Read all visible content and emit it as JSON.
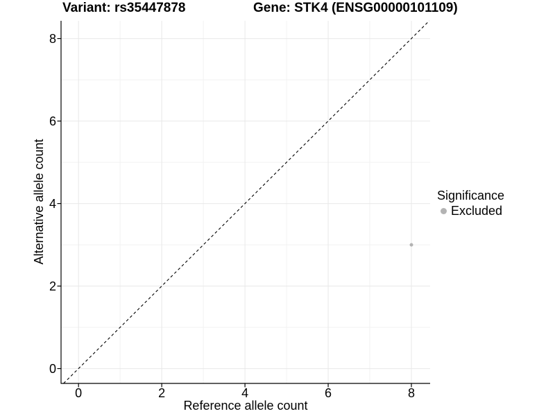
{
  "titles": {
    "left": "Variant: rs35447878",
    "right": "Gene: STK4 (ENSG00000101109)"
  },
  "chart_data": {
    "type": "scatter",
    "xlabel": "Reference allele count",
    "ylabel": "Alternative allele count",
    "xlim": [
      -0.42,
      8.45
    ],
    "ylim": [
      -0.36,
      8.43
    ],
    "xticks": [
      0,
      2,
      4,
      6,
      8
    ],
    "yticks": [
      0,
      2,
      4,
      6,
      8
    ],
    "minor_xticks": [
      1,
      3,
      5,
      7
    ],
    "minor_yticks": [
      1,
      3,
      5,
      7
    ],
    "grid": "major+minor",
    "reference_line": {
      "kind": "identity y=x",
      "style": "dashed",
      "color": "#000000"
    },
    "series": [
      {
        "name": "Excluded",
        "color": "#b3b3b3",
        "point_radius": 2.5,
        "points": [
          {
            "x": 8,
            "y": 3
          }
        ]
      }
    ],
    "legend": {
      "title": "Significance",
      "position": "right",
      "items": [
        {
          "label": "Excluded",
          "color": "#b3b3b3"
        }
      ]
    }
  },
  "colors": {
    "background": "#ffffff",
    "axis_line": "#000000",
    "grid_major": "#e8e8e8",
    "grid_minor": "#f2f2f2",
    "text": "#000000"
  }
}
